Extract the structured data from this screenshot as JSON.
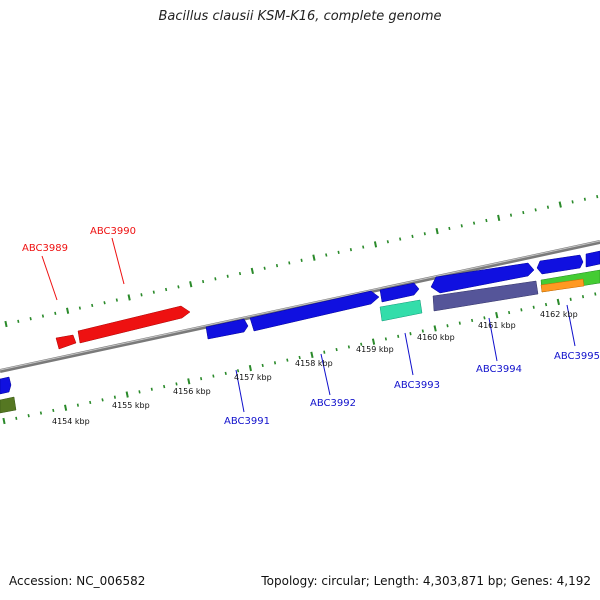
{
  "title": "Bacillus clausii KSM-K16, complete genome",
  "footer": {
    "accession": "Accession: NC_006582",
    "summary": "Topology: circular; Length: 4,303,871 bp; Genes: 4,192"
  },
  "colors": {
    "backbone": "#808080",
    "tick": "#2a8a2a",
    "forward_gene": "#1010e0",
    "reverse_gene": "#1010e0",
    "red_gene": "#ee1111",
    "teal_feature": "#33ddaa",
    "purple_feature": "#555599",
    "green_feature": "#44cc33",
    "orange_feature": "#ff9922",
    "olive_feature": "#557722",
    "label_red": "#ee1111",
    "label_blue": "#1111cc"
  },
  "scale_labels": [
    "4154 kbp",
    "4155 kbp",
    "4156 kbp",
    "4157 kbp",
    "4158 kbp",
    "4159 kbp",
    "4160 kbp",
    "4161 kbp",
    "4162 kbp"
  ],
  "gene_labels": [
    {
      "id": "ABC3989",
      "color": "red"
    },
    {
      "id": "ABC3990",
      "color": "red"
    },
    {
      "id": "ABC3991",
      "color": "blue"
    },
    {
      "id": "ABC3992",
      "color": "blue"
    },
    {
      "id": "ABC3993",
      "color": "blue"
    },
    {
      "id": "ABC3994",
      "color": "blue"
    },
    {
      "id": "ABC3995",
      "color": "blue"
    }
  ]
}
